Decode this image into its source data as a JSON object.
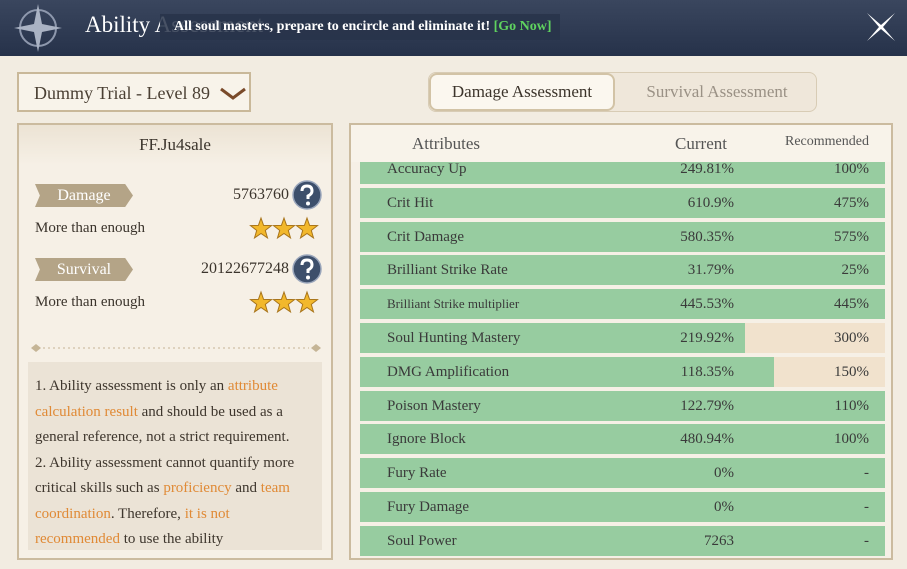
{
  "header": {
    "title": "Ability Assessment",
    "announcement": "All soul masters, prepare to encircle and eliminate it!",
    "announcement_link": "[Go Now]"
  },
  "selector": {
    "label": "Dummy Trial - Level 89"
  },
  "tabs": [
    {
      "label": "Damage Assessment",
      "active": true
    },
    {
      "label": "Survival Assessment",
      "active": false
    }
  ],
  "profile": {
    "name": "FF.Ju4sale",
    "stats": [
      {
        "label": "Damage",
        "value": 5763760,
        "verdict": "More than enough",
        "stars": 3
      },
      {
        "label": "Survival",
        "value": 20122677248,
        "verdict": "More than enough",
        "stars": 3
      }
    ]
  },
  "notes": [
    [
      {
        "text": "1. Ability assessment is only an "
      },
      {
        "text": "attribute calculation result",
        "em": true
      },
      {
        "text": " and should be used as a general reference, not a strict requirement."
      }
    ],
    [
      {
        "text": "2. Ability assessment cannot quantify more critical skills such as "
      },
      {
        "text": "proficiency",
        "em": true
      },
      {
        "text": " and "
      },
      {
        "text": "team coordination",
        "em": true
      },
      {
        "text": ". Therefore, "
      },
      {
        "text": "it is not recommended",
        "em": true
      },
      {
        "text": " to use the ability"
      }
    ]
  ],
  "table": {
    "columns": [
      "Attributes",
      "Current",
      "Recommended"
    ],
    "rows": [
      [
        "Accuracy Up",
        "249.81%",
        "100%"
      ],
      [
        "Crit Hit",
        "610.9%",
        "475%"
      ],
      [
        "Crit Damage",
        "580.35%",
        "575%"
      ],
      [
        "Brilliant Strike Rate",
        "31.79%",
        "25%"
      ],
      [
        "Brilliant Strike multiplier",
        "445.53%",
        "445%"
      ],
      [
        "Soul Hunting Mastery",
        "219.92%",
        "300%"
      ],
      [
        "DMG Amplification",
        "118.35%",
        "150%"
      ],
      [
        "Poison Mastery",
        "122.79%",
        "110%"
      ],
      [
        "Ignore Block",
        "480.94%",
        "100%"
      ],
      [
        "Fury Rate",
        "0%",
        "-"
      ],
      [
        "Fury Damage",
        "0%",
        "-"
      ],
      [
        "Soul Power",
        "7263",
        "-"
      ]
    ]
  }
}
